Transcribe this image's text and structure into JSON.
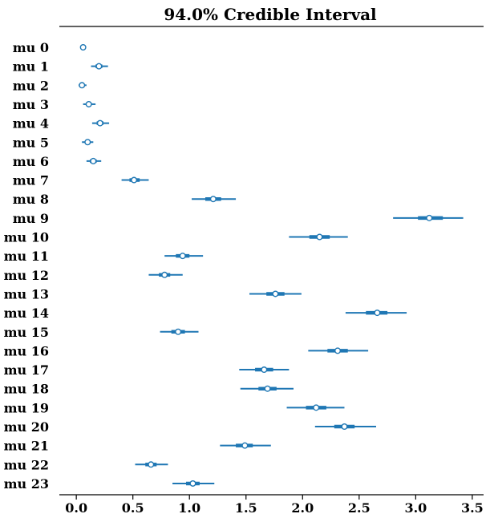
{
  "chart_data": {
    "type": "forest",
    "title": "94.0% Credible Interval",
    "xlabel": "",
    "ylabel": "",
    "xlim": [
      -0.15,
      3.6
    ],
    "xticks": [
      0.0,
      0.5,
      1.0,
      1.5,
      2.0,
      2.5,
      3.0,
      3.5
    ],
    "xtick_labels": [
      "0.0",
      "0.5",
      "1.0",
      "1.5",
      "2.0",
      "2.5",
      "3.0",
      "3.5"
    ],
    "color": "#1f77b4",
    "grid": false,
    "parameters": [
      {
        "label": "mu 0",
        "mean": 0.06,
        "hdi_low": 0.06,
        "hdi_high": 0.06,
        "iqr_low": 0.06,
        "iqr_high": 0.06
      },
      {
        "label": "mu 1",
        "mean": 0.2,
        "hdi_low": 0.13,
        "hdi_high": 0.28,
        "iqr_low": 0.17,
        "iqr_high": 0.23
      },
      {
        "label": "mu 2",
        "mean": 0.05,
        "hdi_low": 0.02,
        "hdi_high": 0.09,
        "iqr_low": 0.04,
        "iqr_high": 0.07
      },
      {
        "label": "mu 3",
        "mean": 0.11,
        "hdi_low": 0.06,
        "hdi_high": 0.17,
        "iqr_low": 0.09,
        "iqr_high": 0.13
      },
      {
        "label": "mu 4",
        "mean": 0.21,
        "hdi_low": 0.14,
        "hdi_high": 0.29,
        "iqr_low": 0.18,
        "iqr_high": 0.24
      },
      {
        "label": "mu 5",
        "mean": 0.1,
        "hdi_low": 0.05,
        "hdi_high": 0.15,
        "iqr_low": 0.08,
        "iqr_high": 0.12
      },
      {
        "label": "mu 6",
        "mean": 0.15,
        "hdi_low": 0.09,
        "hdi_high": 0.22,
        "iqr_low": 0.12,
        "iqr_high": 0.18
      },
      {
        "label": "mu 7",
        "mean": 0.51,
        "hdi_low": 0.4,
        "hdi_high": 0.64,
        "iqr_low": 0.47,
        "iqr_high": 0.56
      },
      {
        "label": "mu 8",
        "mean": 1.21,
        "hdi_low": 1.02,
        "hdi_high": 1.41,
        "iqr_low": 1.14,
        "iqr_high": 1.28
      },
      {
        "label": "mu 9",
        "mean": 3.12,
        "hdi_low": 2.8,
        "hdi_high": 3.42,
        "iqr_low": 3.02,
        "iqr_high": 3.24
      },
      {
        "label": "mu 10",
        "mean": 2.15,
        "hdi_low": 1.88,
        "hdi_high": 2.4,
        "iqr_low": 2.06,
        "iqr_high": 2.24
      },
      {
        "label": "mu 11",
        "mean": 0.94,
        "hdi_low": 0.78,
        "hdi_high": 1.12,
        "iqr_low": 0.88,
        "iqr_high": 1.0
      },
      {
        "label": "mu 12",
        "mean": 0.78,
        "hdi_low": 0.64,
        "hdi_high": 0.94,
        "iqr_low": 0.73,
        "iqr_high": 0.83
      },
      {
        "label": "mu 13",
        "mean": 1.76,
        "hdi_low": 1.53,
        "hdi_high": 1.99,
        "iqr_low": 1.68,
        "iqr_high": 1.84
      },
      {
        "label": "mu 14",
        "mean": 2.66,
        "hdi_low": 2.38,
        "hdi_high": 2.92,
        "iqr_low": 2.56,
        "iqr_high": 2.75
      },
      {
        "label": "mu 15",
        "mean": 0.9,
        "hdi_low": 0.74,
        "hdi_high": 1.08,
        "iqr_low": 0.84,
        "iqr_high": 0.96
      },
      {
        "label": "mu 16",
        "mean": 2.31,
        "hdi_low": 2.05,
        "hdi_high": 2.58,
        "iqr_low": 2.22,
        "iqr_high": 2.4
      },
      {
        "label": "mu 17",
        "mean": 1.66,
        "hdi_low": 1.44,
        "hdi_high": 1.88,
        "iqr_low": 1.58,
        "iqr_high": 1.74
      },
      {
        "label": "mu 18",
        "mean": 1.69,
        "hdi_low": 1.45,
        "hdi_high": 1.92,
        "iqr_low": 1.61,
        "iqr_high": 1.77
      },
      {
        "label": "mu 19",
        "mean": 2.12,
        "hdi_low": 1.86,
        "hdi_high": 2.37,
        "iqr_low": 2.03,
        "iqr_high": 2.21
      },
      {
        "label": "mu 20",
        "mean": 2.37,
        "hdi_low": 2.11,
        "hdi_high": 2.65,
        "iqr_low": 2.28,
        "iqr_high": 2.46
      },
      {
        "label": "mu 21",
        "mean": 1.49,
        "hdi_low": 1.27,
        "hdi_high": 1.72,
        "iqr_low": 1.41,
        "iqr_high": 1.56
      },
      {
        "label": "mu 22",
        "mean": 0.66,
        "hdi_low": 0.52,
        "hdi_high": 0.81,
        "iqr_low": 0.61,
        "iqr_high": 0.71
      },
      {
        "label": "mu 23",
        "mean": 1.03,
        "hdi_low": 0.85,
        "hdi_high": 1.22,
        "iqr_low": 0.97,
        "iqr_high": 1.09
      }
    ]
  }
}
